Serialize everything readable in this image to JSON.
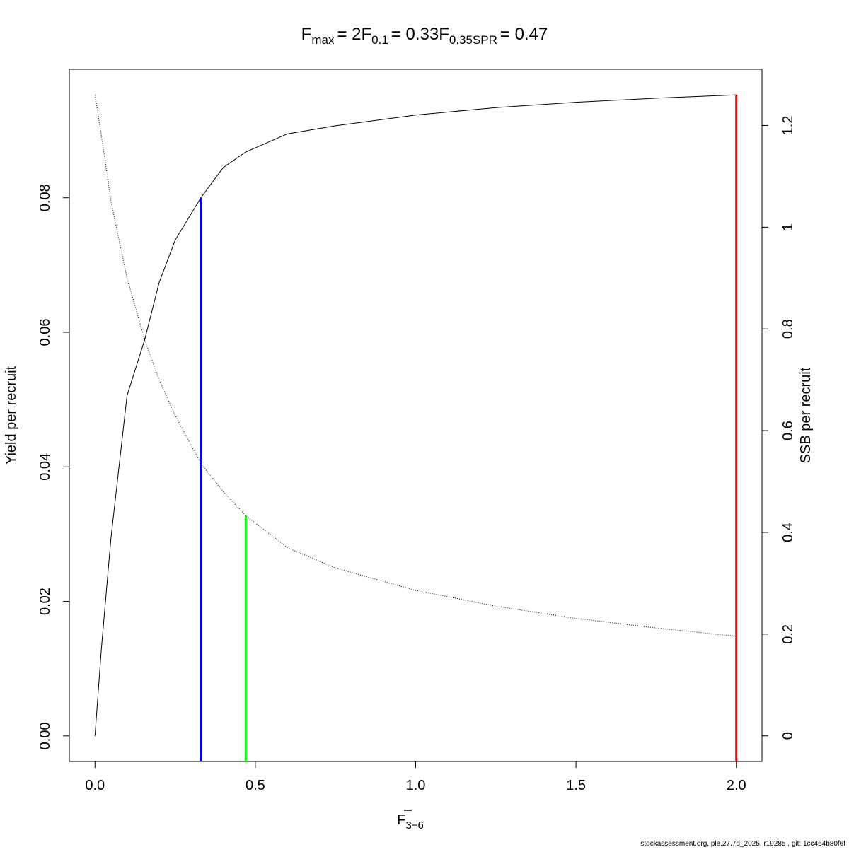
{
  "chart_data": {
    "type": "line",
    "title_parts": [
      {
        "main": "F",
        "sub": "max",
        "value": "= 2"
      },
      {
        "main": "F",
        "sub": "0.1",
        "value": "= 0.33"
      },
      {
        "main": "F",
        "sub": "0.35SPR",
        "value": "= 0.47"
      }
    ],
    "x_label": {
      "main": "F",
      "sub": "3−6"
    },
    "y_label": "Yield per recruit",
    "y2_label": "SSB per recruit",
    "footer": "stockassessment.org, ple.27.7d_2025, r19285 , git: 1cc464b80f6f",
    "x": [
      0,
      0.02,
      0.05,
      0.1,
      0.155,
      0.2,
      0.25,
      0.33,
      0.4,
      0.47,
      0.6,
      0.75,
      1.0,
      1.25,
      1.5,
      1.75,
      2.0
    ],
    "series": [
      {
        "name": "Yield per recruit",
        "color": "#000000",
        "dash": "solid",
        "axis": "y",
        "values": [
          0,
          0.013,
          0.0295,
          0.0506,
          0.0589,
          0.0674,
          0.0737,
          0.08,
          0.0845,
          0.0868,
          0.0895,
          0.0907,
          0.0923,
          0.0934,
          0.0942,
          0.0948,
          0.0953
        ]
      },
      {
        "name": "SSB per recruit",
        "color": "#000000",
        "dash": "dotted",
        "axis": "y2",
        "values": [
          1.26,
          1.18,
          1.05,
          0.9,
          0.779,
          0.7,
          0.63,
          0.536,
          0.48,
          0.433,
          0.37,
          0.33,
          0.286,
          0.255,
          0.231,
          0.212,
          0.196
        ]
      }
    ],
    "vlines": [
      {
        "x": 0.33,
        "top": 0.08,
        "axis": "y",
        "color": "#0000ff"
      },
      {
        "x": 0.47,
        "top": 0.433,
        "axis": "y2",
        "color": "#00ff00"
      },
      {
        "x": 2.0,
        "top": 0.0953,
        "axis": "y",
        "color": "#ff0000"
      }
    ],
    "xlim": [
      -0.08,
      2.08
    ],
    "xticks": [
      {
        "value": 0,
        "label": "0.0"
      },
      0.5,
      {
        "value": 1,
        "label": "1.0"
      },
      1.5,
      {
        "value": 2,
        "label": "2.0"
      }
    ],
    "ylim": [
      -0.0038,
      0.0991
    ],
    "yticks": [
      {
        "value": 0,
        "label": "0.00"
      },
      0.02,
      0.04,
      0.06,
      0.08
    ],
    "y2lim": [
      -0.0504,
      1.3104
    ],
    "y2ticks": [
      0,
      0.2,
      0.4,
      0.6,
      0.8,
      1,
      1.2
    ]
  }
}
